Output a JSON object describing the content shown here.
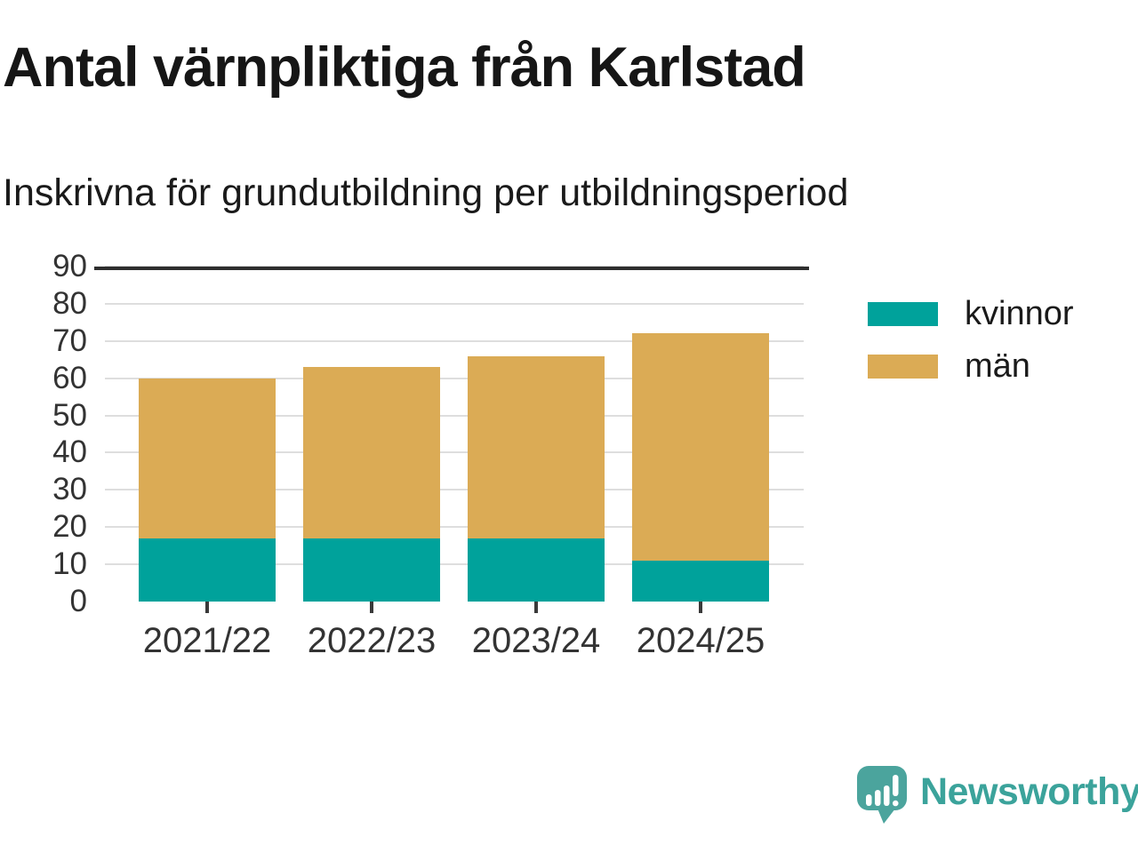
{
  "header": {
    "title": "Antal värnpliktiga från Karlstad",
    "subtitle": "Inskrivna för grundutbildning per utbildningsperiod"
  },
  "chart_data": {
    "type": "bar",
    "stacked": true,
    "title": "Antal värnpliktiga från Karlstad",
    "subtitle": "Inskrivna för grundutbildning per utbildningsperiod",
    "categories": [
      "2021/22",
      "2022/23",
      "2023/24",
      "2024/25"
    ],
    "series": [
      {
        "name": "kvinnor",
        "color": "#00A29B",
        "values": [
          17,
          17,
          17,
          11
        ]
      },
      {
        "name": "män",
        "color": "#DBAB55",
        "values": [
          43,
          46,
          49,
          61
        ]
      }
    ],
    "totals": [
      60,
      63,
      66,
      72
    ],
    "xlabel": "",
    "ylabel": "",
    "ylim": [
      0,
      90
    ],
    "yticks": [
      0,
      10,
      20,
      30,
      40,
      50,
      60,
      70,
      80,
      90
    ],
    "grid": true,
    "legend_position": "right",
    "grid_color": "#DEDEDE",
    "axis_color": "#2E2E2E",
    "tick_label_color": "#333333"
  },
  "legend": {
    "items": [
      {
        "label": "kvinnor",
        "color": "#00A29B"
      },
      {
        "label": "män",
        "color": "#DBAB55"
      }
    ]
  },
  "footer": {
    "brand": "Newsworthy",
    "brand_color": "#3BA39B",
    "logo_color": "#4BA49D",
    "logo_icon": "speech-bubble-bar-chart-icon"
  }
}
